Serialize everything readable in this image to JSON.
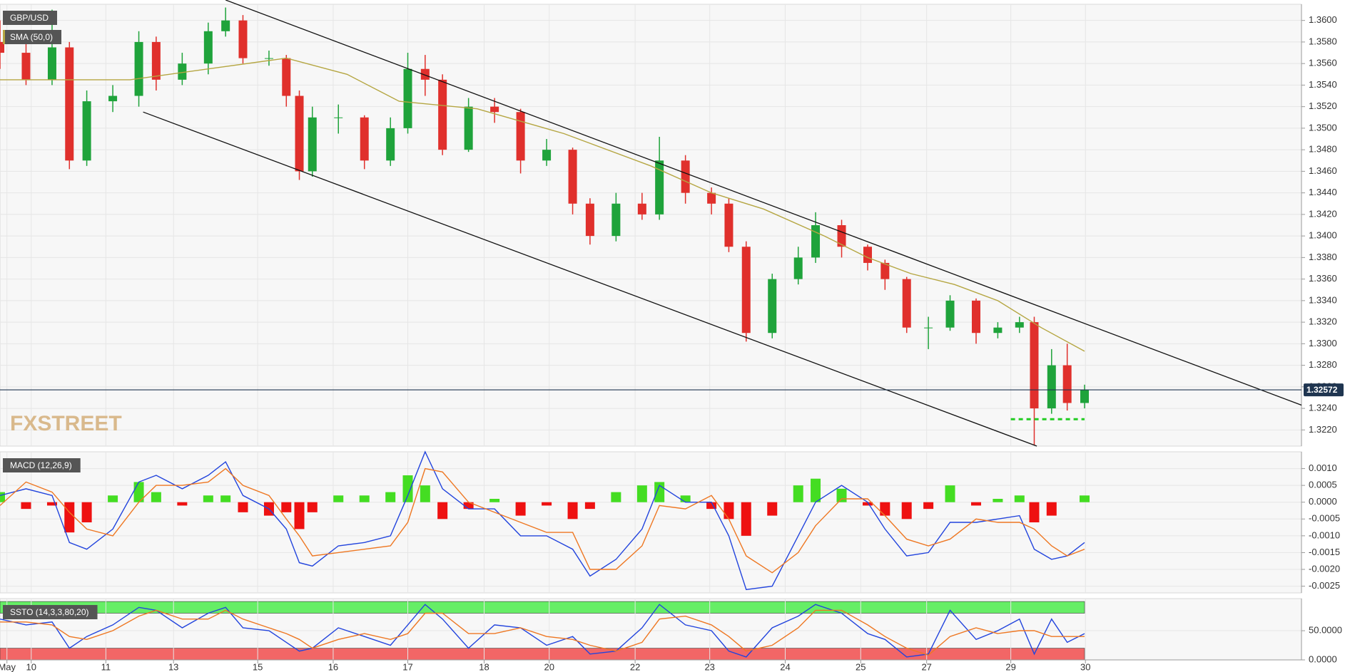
{
  "x_axis": {
    "x": [
      0,
      3,
      6,
      8,
      10,
      13,
      16,
      18,
      21,
      24,
      26,
      28,
      31,
      33,
      34.5,
      36,
      39,
      42,
      45,
      47,
      49,
      51,
      54,
      57,
      60,
      63,
      66,
      68,
      71,
      74,
      76,
      79,
      82,
      84,
      86,
      89,
      92,
      94,
      97,
      100,
      102,
      104.5,
      107,
      109.5,
      112.5,
      115,
      117.5,
      119.2,
      121.2,
      123,
      125
    ],
    "xlim": [
      0,
      150
    ],
    "xticks": [
      {
        "value": 0.8,
        "label": "May"
      },
      {
        "value": 3.6,
        "label": "10"
      },
      {
        "value": 12.2,
        "label": "11"
      },
      {
        "value": 20,
        "label": "13"
      },
      {
        "value": 29.7,
        "label": "15"
      },
      {
        "value": 38.4,
        "label": "16"
      },
      {
        "value": 47,
        "label": "17"
      },
      {
        "value": 55.8,
        "label": "18"
      },
      {
        "value": 63.3,
        "label": "20"
      },
      {
        "value": 73.2,
        "label": "22"
      },
      {
        "value": 81.8,
        "label": "23"
      },
      {
        "value": 90.5,
        "label": "24"
      },
      {
        "value": 99.2,
        "label": "25"
      },
      {
        "value": 106.8,
        "label": "27"
      },
      {
        "value": 116.5,
        "label": "29"
      },
      {
        "value": 125.1,
        "label": "30"
      }
    ]
  },
  "chart_data": [
    {
      "type": "candlestick",
      "title": "GBP/USD",
      "watermark": "FXSTREET",
      "last_price": 1.32572,
      "last_color": "#1f3550",
      "ylim": [
        1.3205,
        1.3615
      ],
      "yticks": [
        {
          "value": 1.322,
          "label": "1.3220"
        },
        {
          "value": 1.324,
          "label": "1.3240"
        },
        {
          "value": 1.326,
          "label": "1.3260"
        },
        {
          "value": 1.328,
          "label": "1.3280"
        },
        {
          "value": 1.33,
          "label": "1.3300"
        },
        {
          "value": 1.332,
          "label": "1.3320"
        },
        {
          "value": 1.334,
          "label": "1.3340"
        },
        {
          "value": 1.336,
          "label": "1.3360"
        },
        {
          "value": 1.338,
          "label": "1.3380"
        },
        {
          "value": 1.34,
          "label": "1.3400"
        },
        {
          "value": 1.342,
          "label": "1.3420"
        },
        {
          "value": 1.344,
          "label": "1.3440"
        },
        {
          "value": 1.346,
          "label": "1.3460"
        },
        {
          "value": 1.348,
          "label": "1.3480"
        },
        {
          "value": 1.35,
          "label": "1.3500"
        },
        {
          "value": 1.352,
          "label": "1.3520"
        },
        {
          "value": 1.354,
          "label": "1.3540"
        },
        {
          "value": 1.356,
          "label": "1.3560"
        },
        {
          "value": 1.358,
          "label": "1.3580"
        },
        {
          "value": 1.36,
          "label": "1.3600"
        }
      ],
      "grid": true,
      "series": [
        {
          "type": "candlestick",
          "up_color": "#1fa33b",
          "down_color": "#e0302c",
          "open": [
            1.358,
            1.357,
            1.3545,
            1.3575,
            1.347,
            1.3525,
            1.353,
            1.358,
            1.3545,
            1.356,
            1.359,
            1.36,
            1.3565,
            1.3565,
            1.353,
            1.346,
            1.351,
            1.351,
            1.347,
            1.35,
            1.3555,
            1.3545,
            1.348,
            1.352,
            1.3515,
            1.347,
            1.348,
            1.343,
            1.34,
            1.343,
            1.342,
            1.347,
            1.344,
            1.343,
            1.339,
            1.331,
            1.336,
            1.338,
            1.341,
            1.339,
            1.3375,
            1.336,
            1.3315,
            1.3315,
            1.334,
            1.331,
            1.3315,
            1.332,
            1.324,
            1.328,
            1.3245
          ],
          "high": [
            1.36,
            1.3578,
            1.361,
            1.358,
            1.3535,
            1.354,
            1.359,
            1.3585,
            1.357,
            1.3598,
            1.3612,
            1.3605,
            1.3572,
            1.3568,
            1.3535,
            1.352,
            1.3522,
            1.3512,
            1.351,
            1.357,
            1.3568,
            1.355,
            1.3528,
            1.3528,
            1.3518,
            1.349,
            1.3482,
            1.3435,
            1.344,
            1.344,
            1.3492,
            1.3475,
            1.3445,
            1.3435,
            1.3395,
            1.3365,
            1.339,
            1.3422,
            1.3415,
            1.3392,
            1.3378,
            1.3362,
            1.3325,
            1.3345,
            1.3342,
            1.332,
            1.3325,
            1.3325,
            1.3295,
            1.33,
            1.3262
          ],
          "low": [
            1.3555,
            1.354,
            1.354,
            1.3462,
            1.3465,
            1.3515,
            1.352,
            1.3535,
            1.354,
            1.355,
            1.3585,
            1.356,
            1.3558,
            1.352,
            1.3452,
            1.3455,
            1.3495,
            1.3462,
            1.3465,
            1.3495,
            1.353,
            1.3475,
            1.3478,
            1.3505,
            1.3458,
            1.3465,
            1.342,
            1.3392,
            1.3395,
            1.3415,
            1.3415,
            1.343,
            1.342,
            1.3385,
            1.3302,
            1.3305,
            1.3355,
            1.3375,
            1.338,
            1.3368,
            1.335,
            1.331,
            1.3295,
            1.3312,
            1.33,
            1.3305,
            1.331,
            1.3206,
            1.3235,
            1.3238,
            1.324
          ],
          "close": [
            1.357,
            1.3545,
            1.3575,
            1.347,
            1.3525,
            1.353,
            1.358,
            1.3545,
            1.356,
            1.359,
            1.36,
            1.3565,
            1.3565,
            1.353,
            1.346,
            1.351,
            1.351,
            1.347,
            1.35,
            1.3555,
            1.3545,
            1.348,
            1.352,
            1.3515,
            1.347,
            1.348,
            1.343,
            1.34,
            1.343,
            1.342,
            1.347,
            1.344,
            1.343,
            1.339,
            1.331,
            1.336,
            1.338,
            1.341,
            1.339,
            1.3375,
            1.336,
            1.3315,
            1.3315,
            1.334,
            1.331,
            1.3315,
            1.332,
            1.324,
            1.328,
            1.3245,
            1.3257
          ]
        },
        {
          "type": "line",
          "name": "SMA (50,0)",
          "color": "#b5a642",
          "x": [
            0,
            15,
            24,
            33,
            40,
            46,
            55,
            65,
            75,
            82,
            88,
            95,
            100,
            105,
            110,
            115,
            120,
            125
          ],
          "values": [
            1.3545,
            1.3545,
            1.3555,
            1.3565,
            1.355,
            1.3525,
            1.3518,
            1.3495,
            1.3465,
            1.344,
            1.3425,
            1.34,
            1.338,
            1.3365,
            1.3355,
            1.334,
            1.3315,
            1.3293
          ]
        }
      ],
      "annotations": [
        {
          "x": [
            26,
            150
          ],
          "y": [
            1.3619,
            1.3243
          ],
          "color": "#111111",
          "dash": false
        },
        {
          "x": [
            16.5,
            119.5
          ],
          "y": [
            1.3515,
            1.3205
          ],
          "color": "#111111",
          "dash": false
        },
        {
          "x": [
            116.5,
            125
          ],
          "y": [
            1.323,
            1.323
          ],
          "color": "#22cc22",
          "dash": true
        }
      ]
    },
    {
      "type": "bar",
      "title": "MACD (12,26,9)",
      "ylim": [
        -0.0027,
        0.0015
      ],
      "yticks": [
        {
          "value": 0.001,
          "label": "0.0010"
        },
        {
          "value": 0.0005,
          "label": "0.0005"
        },
        {
          "value": 0,
          "label": "0.0000"
        },
        {
          "value": -0.0005,
          "label": "-0.0005"
        },
        {
          "value": -0.001,
          "label": "-0.0010"
        },
        {
          "value": -0.0015,
          "label": "-0.0015"
        },
        {
          "value": -0.002,
          "label": "-0.0020"
        },
        {
          "value": -0.0025,
          "label": "-0.0025"
        }
      ],
      "grid": true,
      "series": [
        {
          "type": "histogram",
          "positive_color": "#44dd22",
          "negative_color": "#ee1111",
          "values": [
            0.0003,
            -0.0002,
            -0.0001,
            -0.0009,
            -0.0006,
            0.0002,
            0.0006,
            0.0003,
            -0.0001,
            0.0002,
            0.0002,
            -0.0003,
            -0.0004,
            -0.0003,
            -0.0008,
            -0.0003,
            0.0002,
            0.0002,
            0.0003,
            0.0008,
            0.0005,
            -0.0005,
            -0.0002,
            0.0001,
            -0.0004,
            -0.0001,
            -0.0005,
            -0.0002,
            0.0003,
            0.0005,
            0.0006,
            0.0002,
            -0.0002,
            -0.0005,
            -0.001,
            -0.0004,
            0.0005,
            0.0007,
            0.0004,
            -0.0001,
            -0.0004,
            -0.0005,
            -0.0002,
            0.0005,
            -0.0001,
            0.0001,
            0.0002,
            -0.0006,
            -0.0004,
            0,
            0.0002
          ]
        },
        {
          "type": "line",
          "color": "#2244dd",
          "values": [
            0.0002,
            0.0004,
            0.0002,
            -0.0012,
            -0.0014,
            -0.0008,
            0.0006,
            0.0008,
            0.0004,
            0.0008,
            0.0012,
            0.0002,
            -0.0002,
            -0.0008,
            -0.0018,
            -0.0019,
            -0.0013,
            -0.0012,
            -0.001,
            0.0002,
            0.0015,
            0.0004,
            -0.0002,
            -0.0002,
            -0.001,
            -0.001,
            -0.0014,
            -0.0022,
            -0.0017,
            -0.0008,
            0.0005,
            0.0,
            0.0,
            -0.001,
            -0.0026,
            -0.0025,
            -0.001,
            0.0,
            0.0005,
            0.0,
            -0.0008,
            -0.0016,
            -0.0015,
            -0.0006,
            -0.0006,
            -0.0005,
            -0.0004,
            -0.0014,
            -0.0017,
            -0.0016,
            -0.0012
          ]
        },
        {
          "type": "line",
          "color": "#ee7722",
          "values": [
            -0.0001,
            0.0006,
            0.0003,
            -0.0003,
            -0.0008,
            -0.001,
            0.0,
            0.0005,
            0.0005,
            0.0006,
            0.001,
            0.0005,
            0.0002,
            -0.0005,
            -0.001,
            -0.0016,
            -0.0015,
            -0.0014,
            -0.0013,
            -0.0006,
            0.001,
            0.0009,
            0.0,
            -0.0003,
            -0.0006,
            -0.0009,
            -0.0009,
            -0.002,
            -0.002,
            -0.0013,
            -0.0001,
            -0.0002,
            0.0002,
            -0.0005,
            -0.0016,
            -0.0021,
            -0.0015,
            -0.0007,
            0.0001,
            0.0001,
            -0.0004,
            -0.0011,
            -0.0013,
            -0.0011,
            -0.0005,
            -0.0006,
            -0.0006,
            -0.0008,
            -0.0013,
            -0.0016,
            -0.0014
          ]
        }
      ]
    },
    {
      "type": "line",
      "title": "SSTO (14,3,3,80,20)",
      "ylim": [
        0,
        105
      ],
      "yticks": [
        {
          "value": 50,
          "label": "50.0000"
        },
        {
          "value": 0,
          "label": "0.0000"
        }
      ],
      "grid": true,
      "bands": [
        {
          "from": 80,
          "to": 100,
          "color": "#66ee66"
        },
        {
          "from": 0,
          "to": 20,
          "color": "#f26666"
        }
      ],
      "series": [
        {
          "type": "line",
          "color": "#2244dd",
          "values": [
            70,
            60,
            65,
            20,
            40,
            60,
            90,
            85,
            55,
            80,
            90,
            55,
            50,
            30,
            15,
            20,
            55,
            40,
            25,
            60,
            95,
            70,
            20,
            60,
            55,
            25,
            40,
            10,
            15,
            55,
            95,
            60,
            50,
            15,
            5,
            55,
            75,
            95,
            80,
            45,
            35,
            5,
            10,
            85,
            35,
            50,
            70,
            10,
            70,
            30,
            45
          ]
        },
        {
          "type": "line",
          "color": "#ee7722",
          "values": [
            65,
            65,
            60,
            40,
            35,
            50,
            75,
            85,
            70,
            70,
            85,
            70,
            55,
            45,
            35,
            20,
            35,
            45,
            35,
            45,
            80,
            80,
            45,
            45,
            55,
            40,
            35,
            25,
            15,
            30,
            70,
            75,
            60,
            40,
            15,
            25,
            55,
            85,
            85,
            60,
            40,
            20,
            8,
            40,
            55,
            45,
            50,
            50,
            40,
            40,
            40
          ]
        }
      ]
    }
  ]
}
